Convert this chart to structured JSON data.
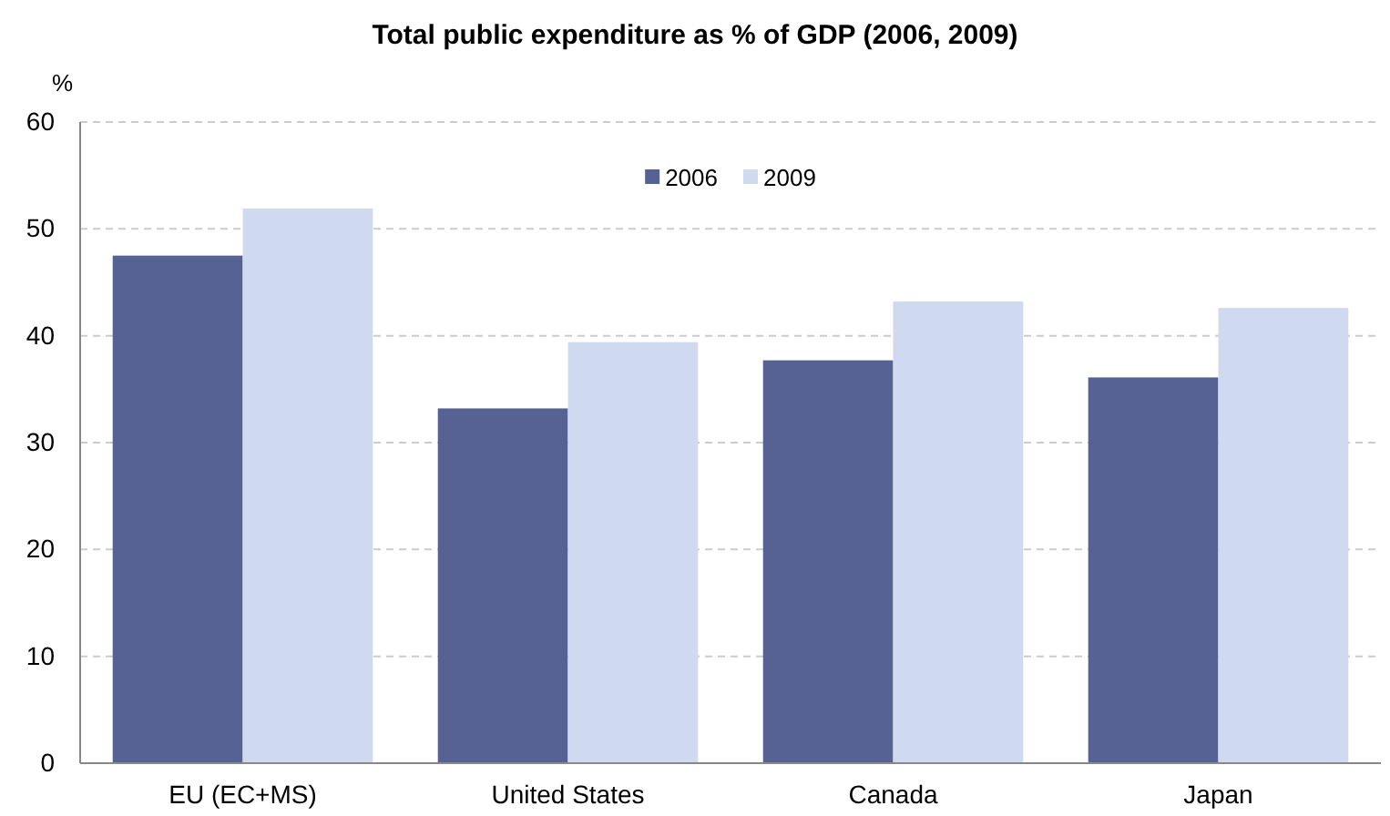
{
  "chart_data": {
    "type": "bar",
    "title": "Total public expenditure as % of GDP (2006, 2009)",
    "ylabel": "%",
    "categories": [
      "EU (EC+MS)",
      "United States",
      "Canada",
      "Japan"
    ],
    "series": [
      {
        "name": "2006",
        "color": "#566194",
        "values": [
          47.5,
          33.2,
          37.7,
          36.1
        ]
      },
      {
        "name": "2009",
        "color": "#cfd9ef",
        "values": [
          51.9,
          39.4,
          43.2,
          42.6
        ]
      }
    ],
    "ylim": [
      0,
      60
    ],
    "yticks": [
      0,
      10,
      20,
      30,
      40,
      50,
      60
    ],
    "grid": "y",
    "legend": "top"
  }
}
